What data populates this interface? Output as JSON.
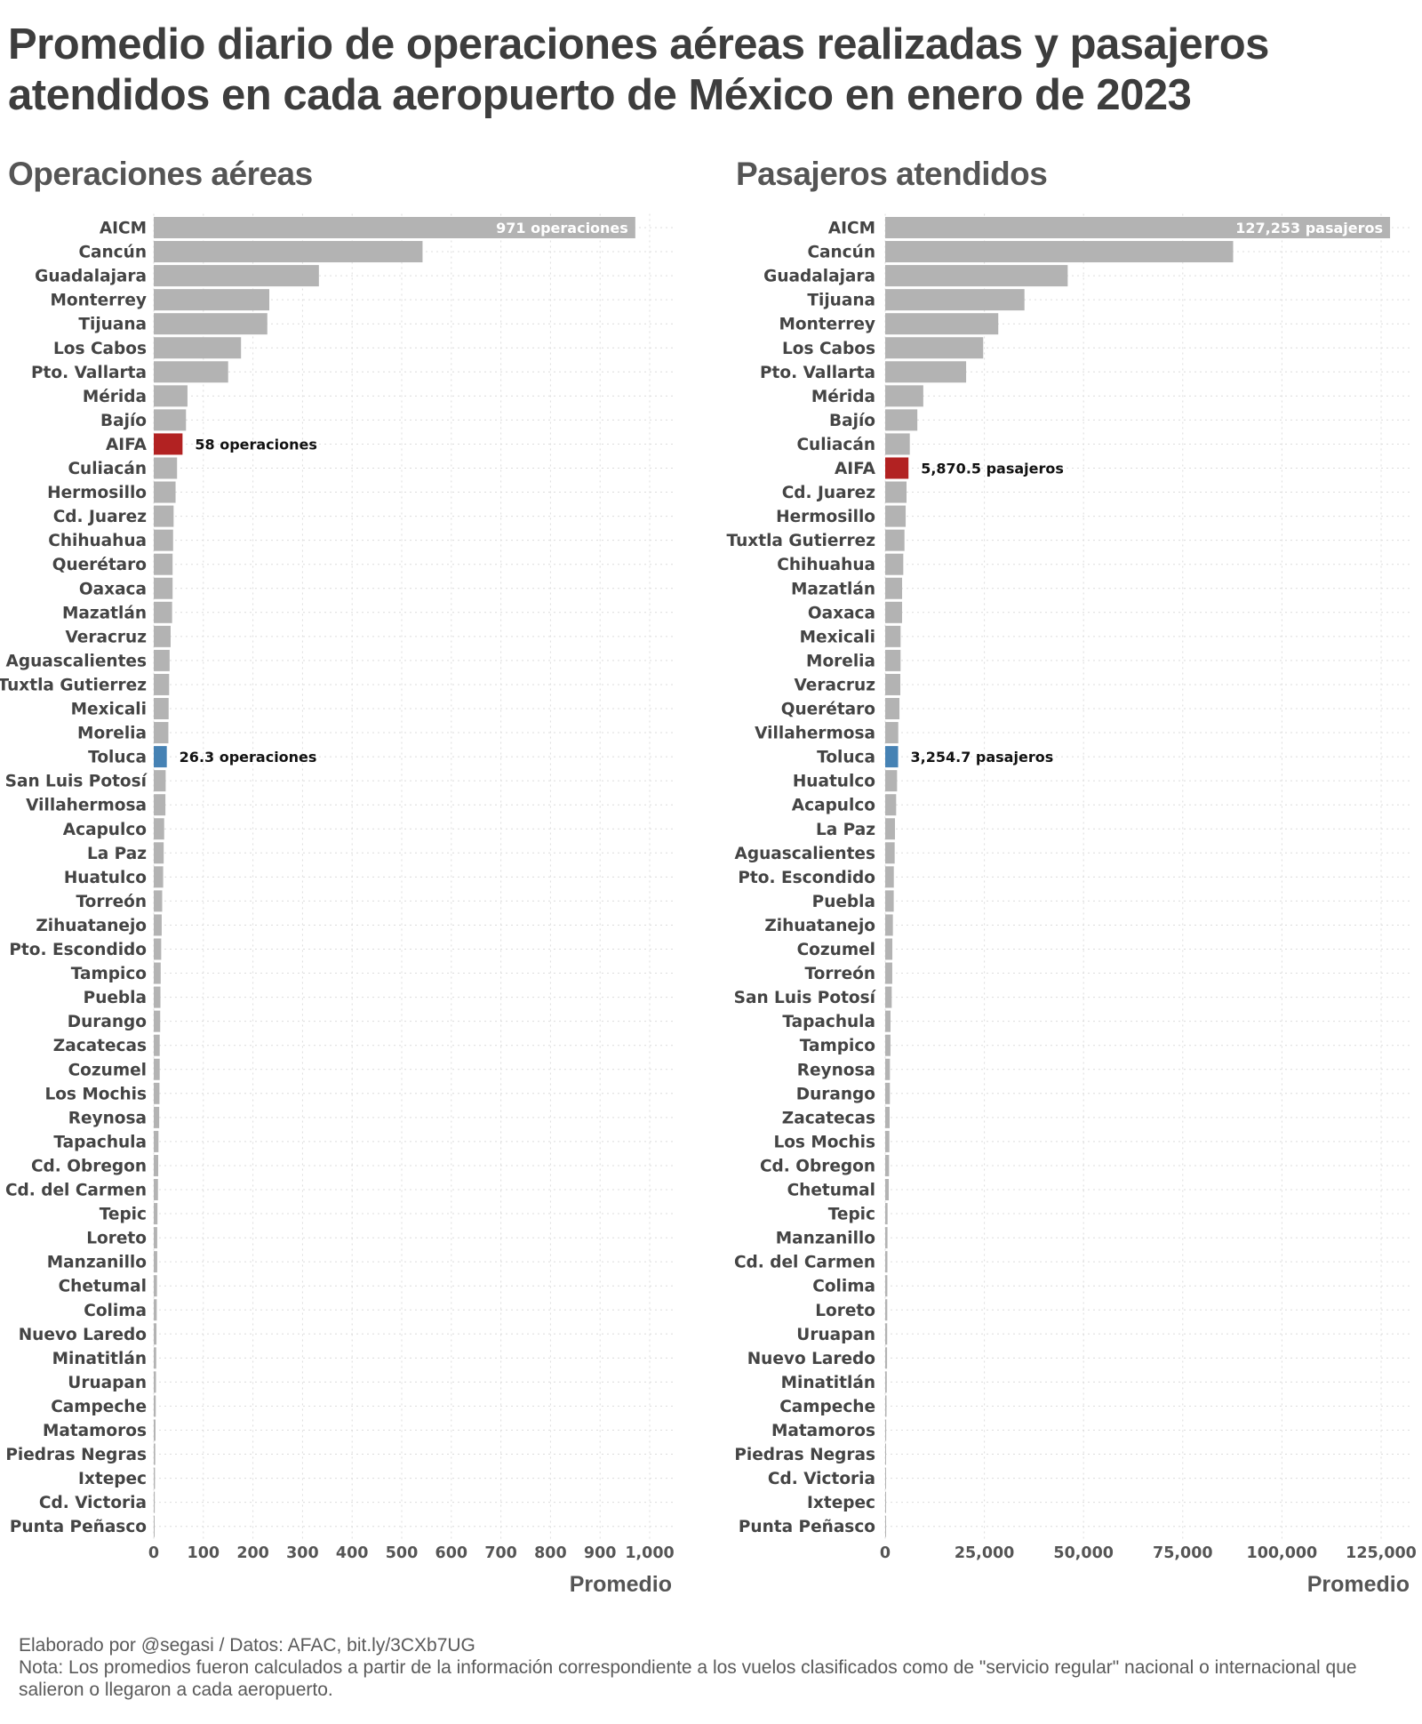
{
  "title": "Promedio diario de operaciones aéreas realizadas y pasajeros atendidos en cada aeropuerto de México en enero de 2023",
  "colors": {
    "bar": "#b3b3b3",
    "highlight_aifa": "#b22222",
    "highlight_toluca": "#4682b4",
    "text": "#3d3d3d"
  },
  "footer": {
    "credit": "Elaborado por @segasi / Datos: AFAC, bit.ly/3CXb7UG",
    "note": "Nota: Los promedios fueron calculados a partir de la información correspondiente a los vuelos clasificados como de \"servicio regular\" nacional o internacional que salieron o llegaron a cada aeropuerto."
  },
  "chart_data": [
    {
      "type": "bar",
      "orientation": "horizontal",
      "title": "Operaciones aéreas",
      "xlabel": "Promedio",
      "ylabel": "",
      "xlim": [
        0,
        1000
      ],
      "ticks": [
        0,
        100,
        200,
        300,
        400,
        500,
        600,
        700,
        800,
        900,
        1000
      ],
      "tick_labels": [
        "0",
        "100",
        "200",
        "300",
        "400",
        "500",
        "600",
        "700",
        "800",
        "900",
        "1,000"
      ],
      "grid": true,
      "categories": [
        "AICM",
        "Cancún",
        "Guadalajara",
        "Monterrey",
        "Tijuana",
        "Los Cabos",
        "Pto. Vallarta",
        "Mérida",
        "Bajío",
        "AIFA",
        "Culiacán",
        "Hermosillo",
        "Cd. Juarez",
        "Chihuahua",
        "Querétaro",
        "Oaxaca",
        "Mazatlán",
        "Veracruz",
        "Aguascalientes",
        "Tuxtla Gutierrez",
        "Mexicali",
        "Morelia",
        "Toluca",
        "San Luis Potosí",
        "Villahermosa",
        "Acapulco",
        "La Paz",
        "Huatulco",
        "Torreón",
        "Zihuatanejo",
        "Pto. Escondido",
        "Tampico",
        "Puebla",
        "Durango",
        "Zacatecas",
        "Cozumel",
        "Los Mochis",
        "Reynosa",
        "Tapachula",
        "Cd. Obregon",
        "Cd. del Carmen",
        "Tepic",
        "Loreto",
        "Manzanillo",
        "Chetumal",
        "Colima",
        "Nuevo Laredo",
        "Minatitlán",
        "Uruapan",
        "Campeche",
        "Matamoros",
        "Piedras Negras",
        "Ixtepec",
        "Cd. Victoria",
        "Punta Peñasco"
      ],
      "values": [
        971,
        542,
        333,
        233,
        229,
        176,
        150,
        68,
        65,
        58,
        47,
        44,
        40,
        39,
        38,
        38,
        37,
        34,
        32,
        31,
        30,
        29.5,
        26.3,
        24,
        23.5,
        21,
        20,
        19,
        17,
        16,
        15,
        14,
        13.5,
        13,
        12,
        12,
        11.5,
        11,
        9.5,
        9,
        8.5,
        7.5,
        7,
        7,
        6.5,
        6,
        5.5,
        5,
        4.5,
        4,
        3.5,
        3,
        2.5,
        2,
        1
      ],
      "highlights": {
        "AIFA": "highlight_aifa",
        "Toluca": "highlight_toluca"
      },
      "annotations": [
        {
          "category": "AICM",
          "text": "971 operaciones",
          "placement": "inside"
        },
        {
          "category": "AIFA",
          "text": "58 operaciones",
          "placement": "outside"
        },
        {
          "category": "Toluca",
          "text": "26.3 operaciones",
          "placement": "outside"
        }
      ]
    },
    {
      "type": "bar",
      "orientation": "horizontal",
      "title": "Pasajeros atendidos",
      "xlabel": "Promedio",
      "ylabel": "",
      "xlim": [
        0,
        125000
      ],
      "ticks": [
        0,
        25000,
        50000,
        75000,
        100000,
        125000
      ],
      "tick_labels": [
        "0",
        "25,000",
        "50,000",
        "75,000",
        "100,000",
        "125,000"
      ],
      "grid": true,
      "categories": [
        "AICM",
        "Cancún",
        "Guadalajara",
        "Tijuana",
        "Monterrey",
        "Los Cabos",
        "Pto. Vallarta",
        "Mérida",
        "Bajío",
        "Culiacán",
        "AIFA",
        "Cd. Juarez",
        "Hermosillo",
        "Tuxtla Gutierrez",
        "Chihuahua",
        "Mazatlán",
        "Oaxaca",
        "Mexicali",
        "Morelia",
        "Veracruz",
        "Querétaro",
        "Villahermosa",
        "Toluca",
        "Huatulco",
        "Acapulco",
        "La Paz",
        "Aguascalientes",
        "Pto. Escondido",
        "Puebla",
        "Zihuatanejo",
        "Cozumel",
        "Torreón",
        "San Luis Potosí",
        "Tapachula",
        "Tampico",
        "Reynosa",
        "Durango",
        "Zacatecas",
        "Los Mochis",
        "Cd. Obregon",
        "Chetumal",
        "Tepic",
        "Manzanillo",
        "Cd. del Carmen",
        "Colima",
        "Loreto",
        "Uruapan",
        "Nuevo Laredo",
        "Minatitlán",
        "Campeche",
        "Matamoros",
        "Piedras Negras",
        "Cd. Victoria",
        "Ixtepec",
        "Punta Peñasco"
      ],
      "values": [
        127253,
        87700,
        46000,
        35100,
        28500,
        24700,
        20400,
        9600,
        8100,
        6200,
        5870.5,
        5380,
        5160,
        4860,
        4560,
        4260,
        4250,
        3880,
        3870,
        3810,
        3590,
        3290,
        3254.7,
        2990,
        2760,
        2460,
        2390,
        2170,
        2150,
        1940,
        1800,
        1780,
        1640,
        1340,
        1330,
        1190,
        1180,
        1120,
        1050,
        970,
        900,
        600,
        580,
        560,
        540,
        520,
        500,
        470,
        400,
        330,
        250,
        100,
        80,
        60,
        30
      ],
      "highlights": {
        "AIFA": "highlight_aifa",
        "Toluca": "highlight_toluca"
      },
      "annotations": [
        {
          "category": "AICM",
          "text": "127,253 pasajeros",
          "placement": "inside"
        },
        {
          "category": "AIFA",
          "text": "5,870.5 pasajeros",
          "placement": "outside"
        },
        {
          "category": "Toluca",
          "text": "3,254.7 pasajeros",
          "placement": "outside"
        }
      ]
    }
  ]
}
